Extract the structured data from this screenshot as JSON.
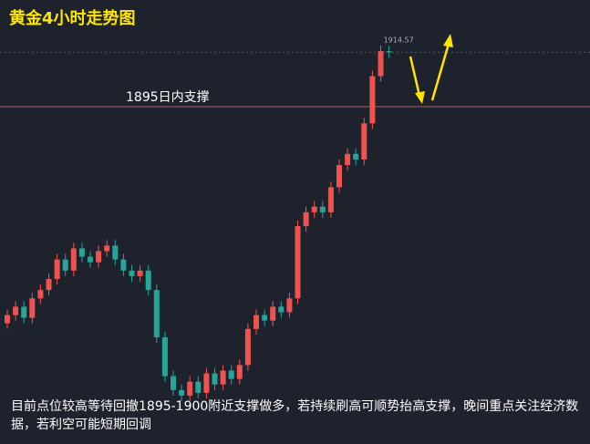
{
  "chart_data": {
    "type": "candlestick",
    "title": "黄金4小时走势图",
    "open": [
      1817,
      1820,
      1823,
      1819,
      1826,
      1829,
      1833,
      1840,
      1836,
      1844,
      1841,
      1839,
      1843,
      1845,
      1840,
      1836,
      1834,
      1836,
      1829,
      1812,
      1798,
      1793,
      1791,
      1796,
      1792,
      1799,
      1795,
      1800,
      1797,
      1802,
      1815,
      1820,
      1818,
      1823,
      1821,
      1826,
      1852,
      1857,
      1859,
      1857,
      1866,
      1874,
      1878,
      1876,
      1889,
      1906,
      1915
    ],
    "high": [
      1822,
      1825,
      1825,
      1828,
      1831,
      1835,
      1842,
      1842,
      1846,
      1846,
      1843,
      1845,
      1847,
      1847,
      1842,
      1838,
      1838,
      1838,
      1831,
      1814,
      1800,
      1795,
      1798,
      1798,
      1801,
      1801,
      1802,
      1802,
      1804,
      1817,
      1822,
      1822,
      1825,
      1825,
      1828,
      1854,
      1859,
      1861,
      1861,
      1868,
      1876,
      1880,
      1880,
      1891,
      1908,
      1917,
      1917
    ],
    "low": [
      1815,
      1818,
      1817,
      1817,
      1824,
      1827,
      1831,
      1834,
      1834,
      1839,
      1837,
      1837,
      1841,
      1838,
      1834,
      1832,
      1832,
      1827,
      1810,
      1796,
      1791,
      1789,
      1789,
      1790,
      1790,
      1793,
      1793,
      1795,
      1795,
      1800,
      1813,
      1816,
      1816,
      1819,
      1819,
      1824,
      1850,
      1855,
      1855,
      1855,
      1864,
      1872,
      1874,
      1874,
      1887,
      1904,
      1912.57
    ],
    "close": [
      1820,
      1823,
      1819,
      1826,
      1829,
      1833,
      1840,
      1836,
      1844,
      1841,
      1839,
      1843,
      1845,
      1840,
      1836,
      1834,
      1836,
      1829,
      1812,
      1798,
      1793,
      1791,
      1796,
      1792,
      1799,
      1795,
      1800,
      1797,
      1802,
      1815,
      1820,
      1818,
      1823,
      1821,
      1826,
      1852,
      1857,
      1859,
      1857,
      1866,
      1874,
      1878,
      1876,
      1889,
      1906,
      1915,
      1914.57
    ],
    "up_color": "#ef5350",
    "down_color": "#26a69a",
    "support": {
      "value": 1895,
      "label": "1895日内支撑"
    },
    "annotation": "目前点位较高等待回撤1895-1900附近支撑做多，若持续刷高可顺势抬高支撑，晚间重点关注经济数据，若利空可能短期回调"
  }
}
